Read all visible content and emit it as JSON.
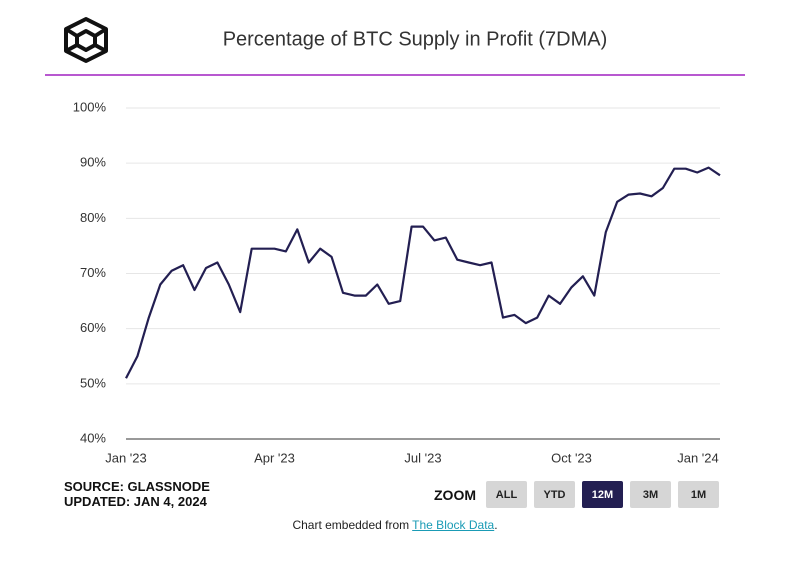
{
  "chart_data": {
    "type": "line",
    "title": "Percentage of BTC Supply in Profit (7DMA)",
    "categories": [
      "Jan '23",
      null,
      null,
      null,
      null,
      null,
      null,
      null,
      null,
      null,
      null,
      null,
      null,
      "Apr '23",
      null,
      null,
      null,
      null,
      null,
      null,
      null,
      null,
      null,
      null,
      null,
      null,
      "Jul '23",
      null,
      null,
      null,
      null,
      null,
      null,
      null,
      null,
      null,
      null,
      null,
      null,
      "Oct '23",
      null,
      null,
      null,
      null,
      null,
      null,
      null,
      null,
      null,
      null,
      null,
      null,
      "Jan '24"
    ],
    "values": [
      51,
      55,
      62,
      68,
      70.5,
      71.5,
      67,
      71,
      72,
      68,
      63,
      74.5,
      74.5,
      74.5,
      74,
      78,
      72,
      74.5,
      73,
      66.5,
      66,
      66,
      68,
      64.5,
      65,
      78.5,
      78.5,
      76,
      76.5,
      72.5,
      72,
      71.5,
      72,
      62,
      62.5,
      61,
      62,
      66,
      64.5,
      67.5,
      69.5,
      66,
      77.5,
      83,
      84.3,
      84.5,
      84,
      85.5,
      89,
      89,
      88.3,
      89.2,
      87.8
    ],
    "color": "#231f52",
    "ylim": [
      40,
      100
    ],
    "yticks": [
      {
        "value": 40,
        "label": "40%"
      },
      {
        "value": 50,
        "label": "50%"
      },
      {
        "value": 60,
        "label": "60%"
      },
      {
        "value": 70,
        "label": "70%"
      },
      {
        "value": 80,
        "label": "80%"
      },
      {
        "value": 90,
        "label": "90%"
      },
      {
        "value": 100,
        "label": "100%"
      }
    ],
    "grid": true
  },
  "source": "SOURCE: GLASSNODE",
  "updated": "UPDATED: JAN 4, 2024",
  "zoom": {
    "label": "ZOOM",
    "buttons": [
      "ALL",
      "YTD",
      "12M",
      "3M",
      "1M"
    ],
    "active": "12M"
  },
  "footer": {
    "prefix": "Chart embedded from",
    "link": "The Block Data",
    "suffix": "."
  }
}
